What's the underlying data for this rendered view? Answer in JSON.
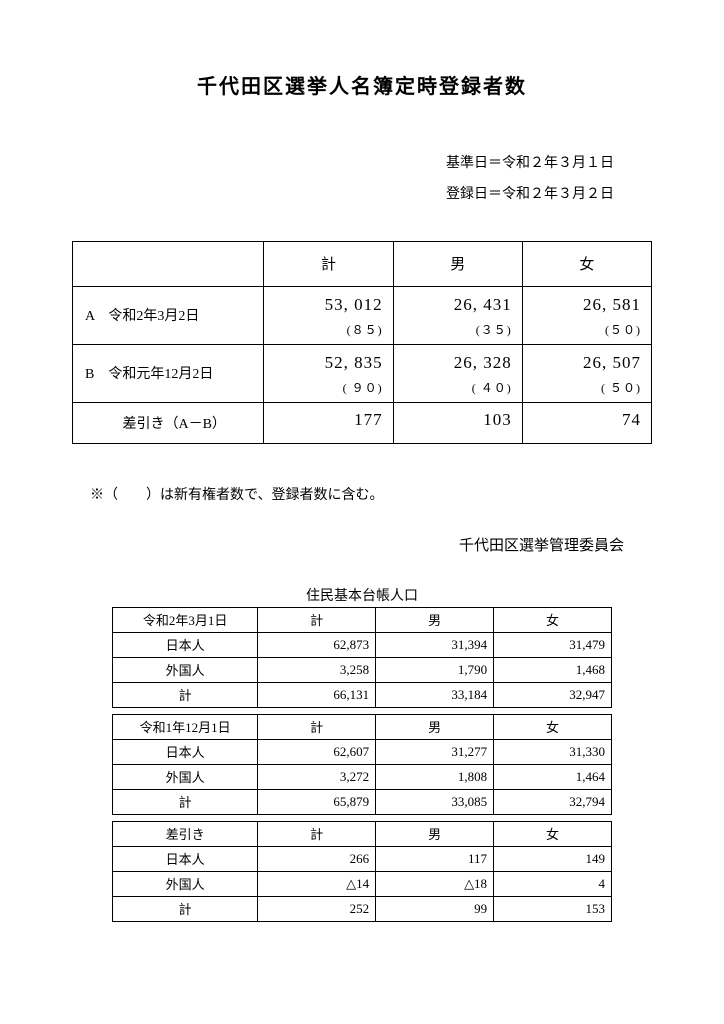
{
  "title": "千代田区選挙人名簿定時登録者数",
  "dates": {
    "base": "基準日＝令和２年３月１日",
    "reg": "登録日＝令和２年３月２日"
  },
  "main": {
    "headers": {
      "blank": "",
      "total": "計",
      "male": "男",
      "female": "女"
    },
    "rowA": {
      "label": "A　令和2年3月2日",
      "total": "53, 012",
      "total_sub": "(８５)",
      "male": "26, 431",
      "male_sub": "(３５)",
      "female": "26, 581",
      "female_sub": "(５０)"
    },
    "rowB": {
      "label": "B　令和元年12月2日",
      "total": "52, 835",
      "total_sub": "( ９０)",
      "male": "26, 328",
      "male_sub": "( ４０)",
      "female": "26, 507",
      "female_sub": "( ５０)"
    },
    "diff": {
      "label": "差引き（A－B）",
      "total": "177",
      "male": "103",
      "female": "74"
    }
  },
  "note": "※（　　）は新有権者数で、登録者数に含む。",
  "committee": "千代田区選挙管理委員会",
  "pop": {
    "title": "住民基本台帳人口",
    "block1": {
      "date": "令和2年3月1日",
      "h_total": "計",
      "h_male": "男",
      "h_female": "女",
      "jp": {
        "label": "日本人",
        "total": "62,873",
        "male": "31,394",
        "female": "31,479"
      },
      "fr": {
        "label": "外国人",
        "total": "3,258",
        "male": "1,790",
        "female": "1,468"
      },
      "sum": {
        "label": "計",
        "total": "66,131",
        "male": "33,184",
        "female": "32,947"
      }
    },
    "block2": {
      "date": "令和1年12月1日",
      "h_total": "計",
      "h_male": "男",
      "h_female": "女",
      "jp": {
        "label": "日本人",
        "total": "62,607",
        "male": "31,277",
        "female": "31,330"
      },
      "fr": {
        "label": "外国人",
        "total": "3,272",
        "male": "1,808",
        "female": "1,464"
      },
      "sum": {
        "label": "計",
        "total": "65,879",
        "male": "33,085",
        "female": "32,794"
      }
    },
    "block3": {
      "date": "差引き",
      "h_total": "計",
      "h_male": "男",
      "h_female": "女",
      "jp": {
        "label": "日本人",
        "total": "266",
        "male": "117",
        "female": "149"
      },
      "fr": {
        "label": "外国人",
        "total": "△14",
        "male": "△18",
        "female": "4"
      },
      "sum": {
        "label": "計",
        "total": "252",
        "male": "99",
        "female": "153"
      }
    }
  }
}
